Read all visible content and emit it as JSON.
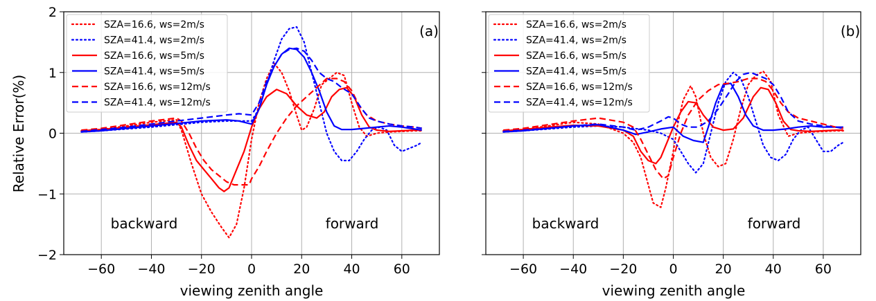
{
  "chart_data": [
    {
      "type": "line",
      "panel_label": "(a)",
      "xlabel": "viewing zenith angle",
      "ylabel": "Relative Error(%)",
      "xlim": [
        -75,
        75
      ],
      "ylim": [
        -2,
        2
      ],
      "xticks": [
        -60,
        -40,
        -20,
        0,
        20,
        40,
        60
      ],
      "yticks": [
        -2,
        -1,
        0,
        1,
        2
      ],
      "xtick_labels": [
        "−60",
        "−40",
        "−20",
        "0",
        "20",
        "40",
        "60"
      ],
      "ytick_labels": [
        "−2",
        "−1",
        "0",
        "1",
        "2"
      ],
      "grid": true,
      "legend_position": "top-left",
      "annotations": [
        "backward",
        "forward"
      ],
      "series": [
        {
          "name": "SZA=16.6, ws=2m/s",
          "color": "#ff0000",
          "dash": "dotted",
          "x": [
            -68,
            -60,
            -50,
            -40,
            -30,
            -28,
            -24,
            -20,
            -16,
            -12,
            -9,
            -6,
            -3,
            0,
            3,
            6,
            9,
            12,
            15,
            18,
            20,
            22,
            25,
            28,
            31,
            34,
            37,
            40,
            43,
            46,
            50,
            55,
            60,
            65,
            68
          ],
          "y": [
            0.04,
            0.06,
            0.12,
            0.18,
            0.22,
            0.05,
            -0.5,
            -1.0,
            -1.3,
            -1.55,
            -1.72,
            -1.5,
            -0.9,
            -0.1,
            0.5,
            0.9,
            1.15,
            1.0,
            0.7,
            0.3,
            0.05,
            0.1,
            0.4,
            0.8,
            0.9,
            1.0,
            0.95,
            0.5,
            0.1,
            -0.05,
            0.0,
            0.02,
            0.03,
            0.04,
            0.04
          ]
        },
        {
          "name": "SZA=41.4, ws=2m/s",
          "color": "#0000ff",
          "dash": "dotted",
          "x": [
            -68,
            -60,
            -50,
            -40,
            -30,
            -20,
            -10,
            0,
            3,
            6,
            9,
            12,
            15,
            18,
            21,
            24,
            27,
            30,
            33,
            36,
            39,
            42,
            45,
            48,
            51,
            54,
            57,
            60,
            63,
            66,
            68
          ],
          "y": [
            0.02,
            0.04,
            0.07,
            0.1,
            0.14,
            0.18,
            0.2,
            0.2,
            0.4,
            0.8,
            1.2,
            1.55,
            1.72,
            1.75,
            1.5,
            1.0,
            0.5,
            0.0,
            -0.3,
            -0.45,
            -0.45,
            -0.3,
            -0.1,
            0.05,
            0.1,
            0.05,
            -0.2,
            -0.3,
            -0.25,
            -0.2,
            -0.15
          ]
        },
        {
          "name": "SZA=16.6, ws=5m/s",
          "color": "#ff0000",
          "dash": "solid",
          "x": [
            -68,
            -60,
            -50,
            -40,
            -30,
            -28,
            -25,
            -22,
            -19,
            -16,
            -13,
            -11,
            -9,
            -6,
            -3,
            0,
            3,
            6,
            10,
            14,
            18,
            22,
            26,
            29,
            32,
            35,
            38,
            41,
            44,
            47,
            50,
            55,
            60,
            65,
            68
          ],
          "y": [
            0.04,
            0.06,
            0.1,
            0.14,
            0.18,
            0.1,
            -0.2,
            -0.45,
            -0.6,
            -0.75,
            -0.9,
            -0.96,
            -0.9,
            -0.6,
            -0.3,
            0.1,
            0.4,
            0.6,
            0.72,
            0.65,
            0.45,
            0.3,
            0.25,
            0.35,
            0.6,
            0.72,
            0.75,
            0.6,
            0.3,
            0.1,
            0.05,
            0.03,
            0.04,
            0.05,
            0.05
          ]
        },
        {
          "name": "SZA=41.4, ws=5m/s",
          "color": "#0000ff",
          "dash": "solid",
          "x": [
            -68,
            -60,
            -50,
            -40,
            -30,
            -20,
            -10,
            -5,
            0,
            3,
            6,
            9,
            12,
            15,
            18,
            21,
            24,
            27,
            30,
            33,
            36,
            40,
            45,
            50,
            55,
            60,
            65,
            68
          ],
          "y": [
            0.02,
            0.04,
            0.08,
            0.12,
            0.16,
            0.2,
            0.22,
            0.2,
            0.15,
            0.4,
            0.8,
            1.1,
            1.3,
            1.4,
            1.38,
            1.25,
            1.0,
            0.7,
            0.35,
            0.12,
            0.06,
            0.06,
            0.08,
            0.1,
            0.12,
            0.1,
            0.07,
            0.05
          ]
        },
        {
          "name": "SZA=16.6, ws=12m/s",
          "color": "#ff0000",
          "dash": "dashed",
          "x": [
            -68,
            -60,
            -50,
            -40,
            -30,
            -28,
            -25,
            -22,
            -19,
            -16,
            -13,
            -10,
            -7,
            -4,
            -1,
            0,
            3,
            6,
            10,
            14,
            18,
            22,
            26,
            30,
            34,
            37,
            40,
            43,
            46,
            50,
            55,
            60,
            65,
            68
          ],
          "y": [
            0.05,
            0.08,
            0.14,
            0.2,
            0.25,
            0.2,
            0.0,
            -0.25,
            -0.45,
            -0.6,
            -0.7,
            -0.8,
            -0.85,
            -0.85,
            -0.85,
            -0.75,
            -0.55,
            -0.3,
            0.0,
            0.25,
            0.45,
            0.6,
            0.75,
            0.9,
            0.9,
            0.85,
            0.7,
            0.45,
            0.3,
            0.2,
            0.15,
            0.12,
            0.1,
            0.08
          ]
        },
        {
          "name": "SZA=41.4, ws=12m/s",
          "color": "#0000ff",
          "dash": "dashed",
          "x": [
            -68,
            -60,
            -50,
            -40,
            -30,
            -20,
            -10,
            -5,
            0,
            3,
            6,
            9,
            12,
            15,
            18,
            21,
            24,
            27,
            30,
            33,
            36,
            40,
            44,
            47,
            50,
            55,
            60,
            65,
            68
          ],
          "y": [
            0.03,
            0.06,
            0.1,
            0.15,
            0.2,
            0.25,
            0.3,
            0.32,
            0.3,
            0.5,
            0.85,
            1.1,
            1.3,
            1.38,
            1.4,
            1.35,
            1.2,
            1.0,
            0.9,
            0.85,
            0.75,
            0.65,
            0.4,
            0.25,
            0.2,
            0.15,
            0.12,
            0.1,
            0.08
          ]
        }
      ]
    },
    {
      "type": "line",
      "panel_label": "(b)",
      "xlabel": "viewing zenith angle",
      "ylabel": "",
      "xlim": [
        -75,
        75
      ],
      "ylim": [
        -2,
        2
      ],
      "xticks": [
        -60,
        -40,
        -20,
        0,
        20,
        40,
        60
      ],
      "yticks": [
        -2,
        -1,
        0,
        1,
        2
      ],
      "xtick_labels": [
        "−60",
        "−40",
        "−20",
        "0",
        "20",
        "40",
        "60"
      ],
      "grid": true,
      "legend_position": "top-left",
      "annotations": [
        "backward",
        "forward"
      ],
      "series": [
        {
          "name": "SZA=16.6, ws=2m/s",
          "color": "#ff0000",
          "dash": "dotted",
          "x": [
            -68,
            -60,
            -50,
            -40,
            -30,
            -20,
            -16,
            -13,
            -10,
            -8,
            -5,
            -3,
            0,
            2,
            4,
            7,
            9,
            12,
            15,
            18,
            21,
            24,
            27,
            30,
            33,
            36,
            39,
            42,
            46,
            50,
            55,
            60,
            65,
            68
          ],
          "y": [
            0.04,
            0.06,
            0.12,
            0.18,
            0.15,
            0.0,
            -0.15,
            -0.4,
            -0.85,
            -1.15,
            -1.22,
            -0.9,
            -0.3,
            0.2,
            0.55,
            0.78,
            0.6,
            0.0,
            -0.4,
            -0.55,
            -0.5,
            -0.1,
            0.4,
            0.8,
            0.95,
            1.02,
            0.85,
            0.3,
            -0.05,
            0.0,
            0.02,
            0.03,
            0.04,
            0.04
          ]
        },
        {
          "name": "SZA=41.4, ws=2m/s",
          "color": "#0000ff",
          "dash": "dotted",
          "x": [
            -68,
            -60,
            -50,
            -40,
            -30,
            -20,
            -10,
            -5,
            0,
            3,
            6,
            9,
            12,
            15,
            18,
            21,
            24,
            27,
            30,
            33,
            36,
            39,
            42,
            45,
            48,
            51,
            54,
            57,
            60,
            63,
            66,
            68
          ],
          "y": [
            0.02,
            0.04,
            0.07,
            0.1,
            0.12,
            0.1,
            0.05,
            0.0,
            -0.1,
            -0.3,
            -0.5,
            -0.65,
            -0.5,
            0.0,
            0.5,
            0.85,
            1.0,
            0.9,
            0.6,
            0.2,
            -0.2,
            -0.4,
            -0.45,
            -0.35,
            -0.1,
            0.05,
            0.1,
            -0.1,
            -0.3,
            -0.3,
            -0.2,
            -0.15
          ]
        },
        {
          "name": "SZA=16.6, ws=5m/s",
          "color": "#ff0000",
          "dash": "solid",
          "x": [
            -68,
            -60,
            -50,
            -40,
            -30,
            -20,
            -16,
            -13,
            -10,
            -7,
            -5,
            -2,
            0,
            3,
            6,
            9,
            12,
            16,
            20,
            24,
            28,
            32,
            35,
            38,
            41,
            44,
            47,
            50,
            55,
            60,
            65,
            68
          ],
          "y": [
            0.04,
            0.06,
            0.1,
            0.13,
            0.12,
            0.05,
            -0.05,
            -0.3,
            -0.45,
            -0.5,
            -0.4,
            -0.1,
            0.1,
            0.35,
            0.52,
            0.5,
            0.3,
            0.1,
            0.05,
            0.07,
            0.25,
            0.6,
            0.75,
            0.72,
            0.5,
            0.2,
            0.06,
            0.04,
            0.03,
            0.04,
            0.05,
            0.05
          ]
        },
        {
          "name": "SZA=41.4, ws=5m/s",
          "color": "#0000ff",
          "dash": "solid",
          "x": [
            -68,
            -60,
            -50,
            -40,
            -30,
            -20,
            -15,
            -10,
            -5,
            0,
            4,
            8,
            12,
            14,
            17,
            20,
            23,
            26,
            29,
            32,
            36,
            40,
            45,
            50,
            55,
            60,
            65,
            68
          ],
          "y": [
            0.02,
            0.04,
            0.08,
            0.12,
            0.14,
            0.05,
            -0.02,
            0.02,
            0.07,
            0.1,
            -0.05,
            -0.12,
            -0.15,
            0.1,
            0.5,
            0.8,
            0.82,
            0.6,
            0.3,
            0.12,
            0.05,
            0.05,
            0.07,
            0.1,
            0.12,
            0.1,
            0.1,
            0.1
          ]
        },
        {
          "name": "SZA=16.6, ws=12m/s",
          "color": "#ff0000",
          "dash": "dashed",
          "x": [
            -68,
            -60,
            -50,
            -40,
            -30,
            -20,
            -16,
            -13,
            -10,
            -7,
            -4,
            -2,
            0,
            3,
            6,
            10,
            14,
            18,
            22,
            26,
            30,
            34,
            37,
            40,
            43,
            46,
            50,
            55,
            60,
            65,
            68
          ],
          "y": [
            0.05,
            0.08,
            0.14,
            0.2,
            0.25,
            0.18,
            0.1,
            -0.1,
            -0.35,
            -0.6,
            -0.75,
            -0.7,
            -0.4,
            0.0,
            0.3,
            0.55,
            0.7,
            0.8,
            0.82,
            0.85,
            0.9,
            0.9,
            0.85,
            0.7,
            0.5,
            0.35,
            0.25,
            0.2,
            0.15,
            0.1,
            0.08
          ]
        },
        {
          "name": "SZA=41.4, ws=12m/s",
          "color": "#0000ff",
          "dash": "dashed",
          "x": [
            -68,
            -60,
            -50,
            -40,
            -30,
            -20,
            -15,
            -10,
            -5,
            -2,
            0,
            3,
            6,
            10,
            14,
            18,
            22,
            25,
            28,
            31,
            34,
            37,
            40,
            43,
            46,
            50,
            55,
            60,
            65,
            68
          ],
          "y": [
            0.03,
            0.05,
            0.08,
            0.12,
            0.15,
            0.1,
            0.05,
            0.1,
            0.2,
            0.27,
            0.25,
            0.15,
            0.1,
            0.1,
            0.2,
            0.4,
            0.65,
            0.85,
            0.97,
            1.0,
            0.95,
            0.9,
            0.8,
            0.6,
            0.35,
            0.2,
            0.15,
            0.12,
            0.1,
            0.08
          ]
        }
      ]
    }
  ]
}
